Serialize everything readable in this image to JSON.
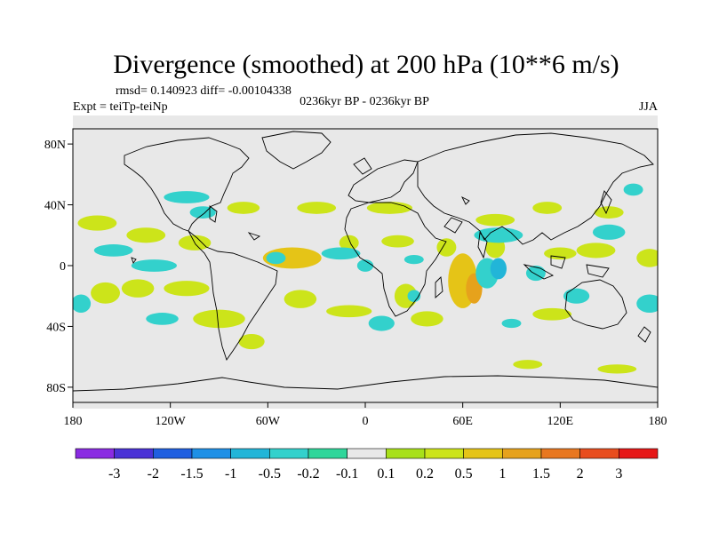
{
  "chart_data": {
    "type": "heatmap",
    "title": "Divergence (smoothed) at 200 hPa (10**6 m/s)",
    "stats_text": "rmsd= 0.140923  diff= -0.00104338",
    "experiment": "Expt = teiTp-teiNp",
    "period": "0236kyr BP - 0236kyr BP",
    "season": "JJA",
    "x_ticks": [
      {
        "lon": -180,
        "label": "180"
      },
      {
        "lon": -120,
        "label": "120W"
      },
      {
        "lon": -60,
        "label": "60W"
      },
      {
        "lon": 0,
        "label": "0"
      },
      {
        "lon": 60,
        "label": "60E"
      },
      {
        "lon": 120,
        "label": "120E"
      },
      {
        "lon": 180,
        "label": "180"
      }
    ],
    "y_ticks": [
      {
        "lat": 80,
        "label": "80N"
      },
      {
        "lat": 40,
        "label": "40N"
      },
      {
        "lat": 0,
        "label": "0"
      },
      {
        "lat": -40,
        "label": "40S"
      },
      {
        "lat": -80,
        "label": "80S"
      }
    ],
    "xlim": [
      -180,
      180
    ],
    "ylim": [
      -90,
      90
    ],
    "colorbar": {
      "colors": [
        "#8a2be2",
        "#4a32d6",
        "#1f5fe0",
        "#1e90e6",
        "#22b5d8",
        "#33d1cc",
        "#2fd69a",
        "#e8e8e8",
        "#a8e01a",
        "#cce41a",
        "#e5c417",
        "#e6a21c",
        "#e8771f",
        "#e84d1e",
        "#e61717"
      ],
      "labels": [
        "-3",
        "-2",
        "-1.5",
        "-1",
        "-0.5",
        "-0.2",
        "-0.1",
        "0.1",
        "0.2",
        "0.5",
        "1",
        "1.5",
        "2",
        "3"
      ]
    },
    "features": [
      {
        "lon": 150,
        "lat": 35,
        "rx": 9,
        "ry": 4,
        "level": 0.25
      },
      {
        "lon": 112,
        "lat": 38,
        "rx": 9,
        "ry": 4,
        "level": 0.25
      },
      {
        "lon": 80,
        "lat": 30,
        "rx": 12,
        "ry": 4,
        "level": 0.25
      },
      {
        "lon": 15,
        "lat": 38,
        "rx": 14,
        "ry": 4,
        "level": 0.25
      },
      {
        "lon": -30,
        "lat": 38,
        "rx": 12,
        "ry": 4,
        "level": 0.25
      },
      {
        "lon": -75,
        "lat": 38,
        "rx": 10,
        "ry": 4,
        "level": 0.25
      },
      {
        "lon": -165,
        "lat": 28,
        "rx": 12,
        "ry": 5,
        "level": 0.25
      },
      {
        "lon": -135,
        "lat": 20,
        "rx": 12,
        "ry": 5,
        "level": 0.25
      },
      {
        "lon": -105,
        "lat": 15,
        "rx": 10,
        "ry": 5,
        "level": 0.25
      },
      {
        "lon": 175,
        "lat": 5,
        "rx": 8,
        "ry": 6,
        "level": 0.25
      },
      {
        "lon": -45,
        "lat": 5,
        "rx": 18,
        "ry": 7,
        "level": 0.6
      },
      {
        "lon": -10,
        "lat": 15,
        "rx": 6,
        "ry": 5,
        "level": 0.25
      },
      {
        "lon": 20,
        "lat": 16,
        "rx": 10,
        "ry": 4,
        "level": 0.25
      },
      {
        "lon": 50,
        "lat": 12,
        "rx": 6,
        "ry": 6,
        "level": 0.25
      },
      {
        "lon": 80,
        "lat": 12,
        "rx": 6,
        "ry": 7,
        "level": 0.25
      },
      {
        "lon": 120,
        "lat": 8,
        "rx": 10,
        "ry": 4,
        "level": 0.25
      },
      {
        "lon": 142,
        "lat": 10,
        "rx": 12,
        "ry": 5,
        "level": 0.25
      },
      {
        "lon": 60,
        "lat": -10,
        "rx": 9,
        "ry": 18,
        "level": 0.6
      },
      {
        "lon": 67,
        "lat": -15,
        "rx": 5,
        "ry": 10,
        "level": 1.1
      },
      {
        "lon": 25,
        "lat": -20,
        "rx": 7,
        "ry": 8,
        "level": 0.25
      },
      {
        "lon": -140,
        "lat": -15,
        "rx": 10,
        "ry": 6,
        "level": 0.25
      },
      {
        "lon": -160,
        "lat": -18,
        "rx": 9,
        "ry": 7,
        "level": 0.25
      },
      {
        "lon": -110,
        "lat": -15,
        "rx": 14,
        "ry": 5,
        "level": 0.25
      },
      {
        "lon": -40,
        "lat": -22,
        "rx": 10,
        "ry": 6,
        "level": 0.25
      },
      {
        "lon": -10,
        "lat": -30,
        "rx": 14,
        "ry": 4,
        "level": 0.25
      },
      {
        "lon": 38,
        "lat": -35,
        "rx": 10,
        "ry": 5,
        "level": 0.25
      },
      {
        "lon": 115,
        "lat": -32,
        "rx": 12,
        "ry": 4,
        "level": 0.25
      },
      {
        "lon": -90,
        "lat": -35,
        "rx": 16,
        "ry": 6,
        "level": 0.25
      },
      {
        "lon": -70,
        "lat": -50,
        "rx": 8,
        "ry": 5,
        "level": 0.25
      },
      {
        "lon": 100,
        "lat": -65,
        "rx": 9,
        "ry": 3,
        "level": 0.25
      },
      {
        "lon": 155,
        "lat": -68,
        "rx": 12,
        "ry": 3,
        "level": 0.25
      },
      {
        "lon": 165,
        "lat": 50,
        "rx": 6,
        "ry": 4,
        "level": -0.25
      },
      {
        "lon": -55,
        "lat": 5,
        "rx": 6,
        "ry": 4,
        "level": -0.25
      },
      {
        "lon": -110,
        "lat": 45,
        "rx": 14,
        "ry": 4,
        "level": -0.25
      },
      {
        "lon": -155,
        "lat": 10,
        "rx": 12,
        "ry": 4,
        "level": -0.25
      },
      {
        "lon": -100,
        "lat": 35,
        "rx": 8,
        "ry": 4,
        "level": -0.25
      },
      {
        "lon": -15,
        "lat": 8,
        "rx": 12,
        "ry": 4,
        "level": -0.25
      },
      {
        "lon": 0,
        "lat": 0,
        "rx": 5,
        "ry": 4,
        "level": -0.25
      },
      {
        "lon": 30,
        "lat": 4,
        "rx": 6,
        "ry": 3,
        "level": -0.25
      },
      {
        "lon": 82,
        "lat": 20,
        "rx": 15,
        "ry": 5,
        "level": -0.25
      },
      {
        "lon": 150,
        "lat": 22,
        "rx": 10,
        "ry": 5,
        "level": -0.25
      },
      {
        "lon": 75,
        "lat": -5,
        "rx": 7,
        "ry": 10,
        "level": -0.3
      },
      {
        "lon": 82,
        "lat": -2,
        "rx": 5,
        "ry": 7,
        "level": -0.6
      },
      {
        "lon": 105,
        "lat": -5,
        "rx": 6,
        "ry": 5,
        "level": -0.25
      },
      {
        "lon": 130,
        "lat": -20,
        "rx": 8,
        "ry": 5,
        "level": -0.25
      },
      {
        "lon": 175,
        "lat": -25,
        "rx": 8,
        "ry": 6,
        "level": -0.3
      },
      {
        "lon": -175,
        "lat": -25,
        "rx": 6,
        "ry": 6,
        "level": -0.3
      },
      {
        "lon": -125,
        "lat": -35,
        "rx": 10,
        "ry": 4,
        "level": -0.25
      },
      {
        "lon": -130,
        "lat": 0,
        "rx": 14,
        "ry": 4,
        "level": -0.25
      },
      {
        "lon": 10,
        "lat": -38,
        "rx": 8,
        "ry": 5,
        "level": -0.25
      },
      {
        "lon": 90,
        "lat": -38,
        "rx": 6,
        "ry": 3,
        "level": -0.25
      },
      {
        "lon": 30,
        "lat": -20,
        "rx": 4,
        "ry": 4,
        "level": -0.25
      }
    ]
  }
}
